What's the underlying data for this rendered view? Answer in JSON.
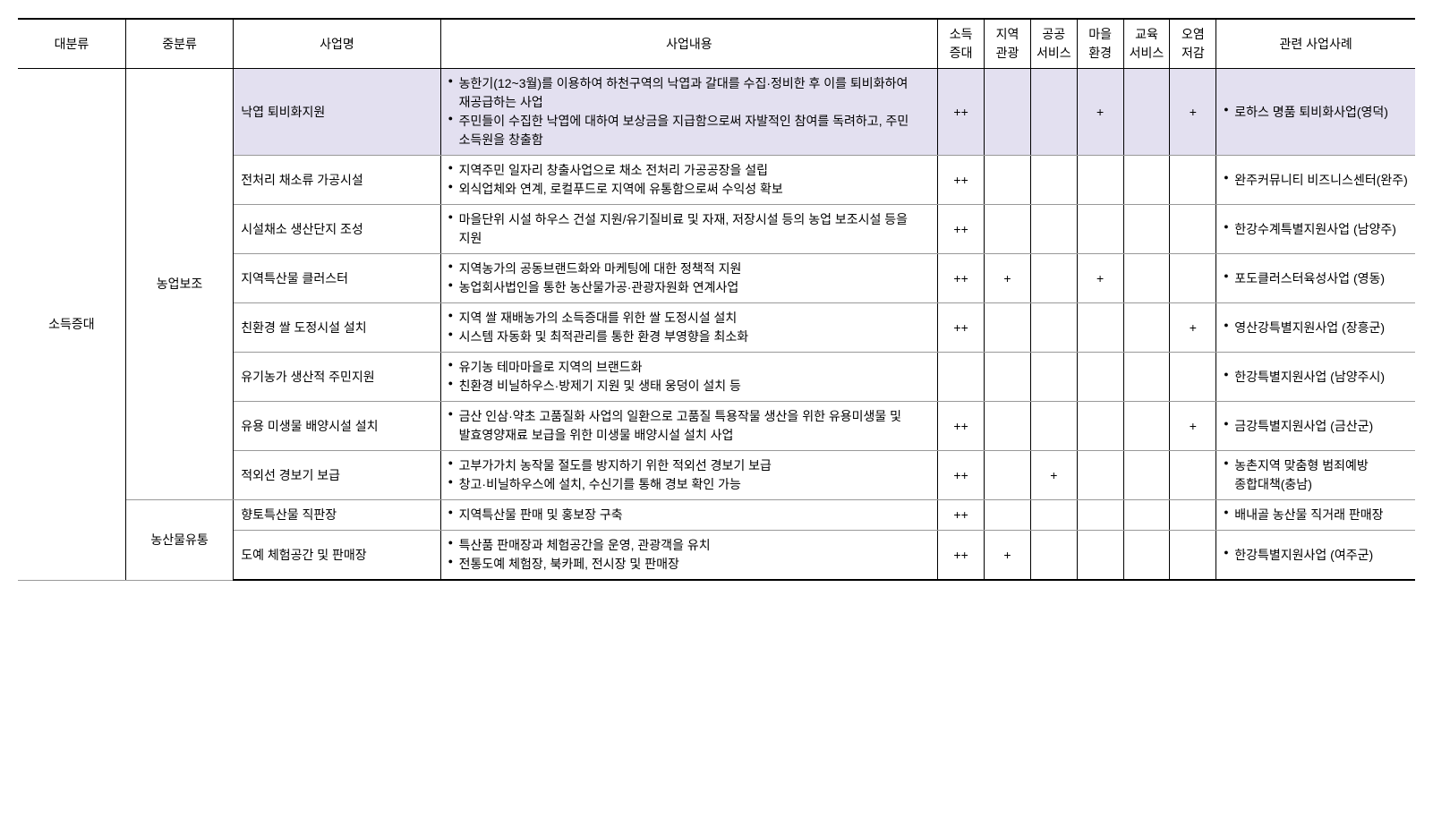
{
  "headers": {
    "cat1": "대분류",
    "cat2": "중분류",
    "name": "사업명",
    "desc": "사업내용",
    "m1": "소득\n증대",
    "m2": "지역\n관광",
    "m3": "공공\n서비스",
    "m4": "마을\n환경",
    "m5": "교육\n서비스",
    "m6": "오염\n저감",
    "case": "관련 사업사례"
  },
  "cat1": "소득증대",
  "cat2a": "농업보조",
  "cat2b": "농산물유통",
  "rows": [
    {
      "name": "낙엽 퇴비화지원",
      "desc": [
        "농한기(12~3월)를 이용하여 하천구역의 낙엽과 갈대를 수집·정비한 후 이를 퇴비화하여 재공급하는 사업",
        "주민들이 수집한 낙엽에 대하여 보상금을 지급함으로써 자발적인 참여를 독려하고, 주민 소득원을 창출함"
      ],
      "m": [
        "++",
        "",
        "",
        "+",
        "",
        "+"
      ],
      "case": [
        "로하스 명품 퇴비화사업(영덕)"
      ],
      "hl": true
    },
    {
      "name": "전처리 채소류 가공시설",
      "desc": [
        "지역주민 일자리 창출사업으로 채소 전처리 가공공장을 설립",
        "외식업체와 연계, 로컬푸드로 지역에 유통함으로써 수익성 확보"
      ],
      "m": [
        "++",
        "",
        "",
        "",
        "",
        ""
      ],
      "case": [
        "완주커뮤니티 비즈니스센터(완주)"
      ]
    },
    {
      "name": "시설채소 생산단지 조성",
      "desc": [
        "마을단위 시설 하우스 건설 지원/유기질비료 및 자재, 저장시설 등의 농업 보조시설 등을 지원"
      ],
      "m": [
        "++",
        "",
        "",
        "",
        "",
        ""
      ],
      "case": [
        "한강수계특별지원사업 (남양주)"
      ]
    },
    {
      "name": "지역특산물 클러스터",
      "desc": [
        "지역농가의 공동브랜드화와 마케팅에 대한 정책적 지원",
        "농업회사법인을 통한 농산물가공·관광자원화 연계사업"
      ],
      "m": [
        "++",
        "+",
        "",
        "+",
        "",
        ""
      ],
      "case": [
        "포도클러스터육성사업 (영동)"
      ]
    },
    {
      "name": "친환경 쌀 도정시설 설치",
      "desc": [
        "지역 쌀 재배농가의 소득증대를 위한 쌀 도정시설 설치",
        "시스템 자동화 및 최적관리를 통한 환경 부영향을 최소화"
      ],
      "m": [
        "++",
        "",
        "",
        "",
        "",
        "+"
      ],
      "case": [
        "영산강특별지원사업 (장흥군)"
      ]
    },
    {
      "name": "유기농가 생산적 주민지원",
      "desc": [
        "유기농 테마마을로 지역의 브랜드화",
        "친환경 비닐하우스·방제기 지원 및 생태 웅덩이 설치 등"
      ],
      "m": [
        "",
        "",
        "",
        "",
        "",
        ""
      ],
      "case": [
        "한강특별지원사업 (남양주시)"
      ]
    },
    {
      "name": "유용 미생물 배양시설 설치",
      "desc": [
        "금산 인삼·약초 고품질화 사업의 일환으로 고품질 특용작물 생산을 위한 유용미생물 및 발효영양재료 보급을 위한 미생물 배양시설 설치 사업"
      ],
      "m": [
        "++",
        "",
        "",
        "",
        "",
        "+"
      ],
      "case": [
        "금강특별지원사업 (금산군)"
      ]
    },
    {
      "name": "적외선 경보기 보급",
      "desc": [
        "고부가가치 농작물 절도를 방지하기 위한 적외선 경보기 보급",
        "창고·비닐하우스에 설치, 수신기를 통해 경보 확인 가능"
      ],
      "m": [
        "++",
        "",
        "+",
        "",
        "",
        ""
      ],
      "case": [
        "농촌지역 맞춤형 범죄예방 종합대책(충남)"
      ]
    },
    {
      "name": "향토특산물 직판장",
      "desc": [
        "지역특산물 판매 및 홍보장 구축"
      ],
      "m": [
        "++",
        "",
        "",
        "",
        "",
        ""
      ],
      "case": [
        "배내골 농산물 직거래 판매장"
      ]
    },
    {
      "name": "도예 체험공간 및 판매장",
      "desc": [
        "특산품 판매장과 체험공간을 운영, 관광객을 유치",
        "전통도예 체험장, 북카페, 전시장 및 판매장"
      ],
      "m": [
        "++",
        "+",
        "",
        "",
        "",
        ""
      ],
      "case": [
        "한강특별지원사업 (여주군)"
      ]
    }
  ]
}
